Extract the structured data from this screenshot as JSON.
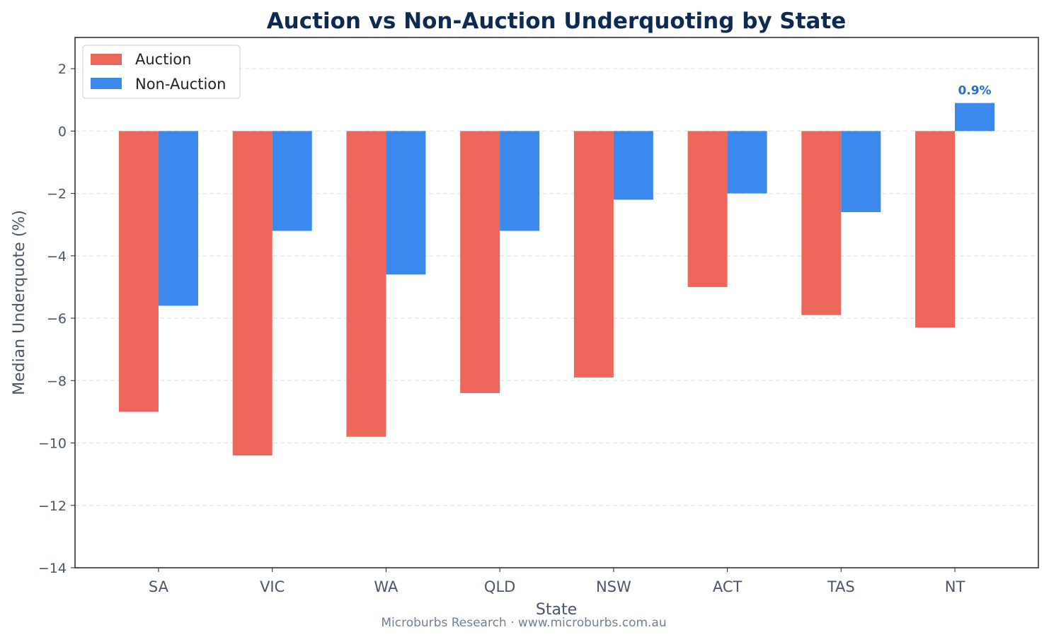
{
  "chart_data": {
    "type": "bar",
    "title": "Auction vs Non-Auction Underquoting by State",
    "xlabel": "State",
    "ylabel": "Median Underquote (%)",
    "footer": "Microburbs Research · www.microburbs.com.au",
    "categories": [
      "SA",
      "VIC",
      "WA",
      "QLD",
      "NSW",
      "ACT",
      "TAS",
      "NT"
    ],
    "series": [
      {
        "name": "Auction",
        "color": "#ec6759",
        "values": [
          -9.0,
          -10.4,
          -9.8,
          -8.4,
          -7.9,
          -5.0,
          -5.9,
          -6.3
        ]
      },
      {
        "name": "Non-Auction",
        "color": "#3b89ec",
        "values": [
          -5.6,
          -3.2,
          -4.6,
          -3.2,
          -2.2,
          -2.0,
          -2.6,
          0.9
        ]
      }
    ],
    "annotations": [
      {
        "category": "NT",
        "series": "Non-Auction",
        "text": "0.9%",
        "color": "#1f6fe0"
      }
    ],
    "ylim": [
      -14,
      3
    ],
    "yticks": [
      2,
      0,
      -2,
      -4,
      -6,
      -8,
      -10,
      -12,
      -14
    ],
    "grid": true,
    "legend": "top-left",
    "title_color": "#0d2a52",
    "text_color": "#4a5568"
  }
}
